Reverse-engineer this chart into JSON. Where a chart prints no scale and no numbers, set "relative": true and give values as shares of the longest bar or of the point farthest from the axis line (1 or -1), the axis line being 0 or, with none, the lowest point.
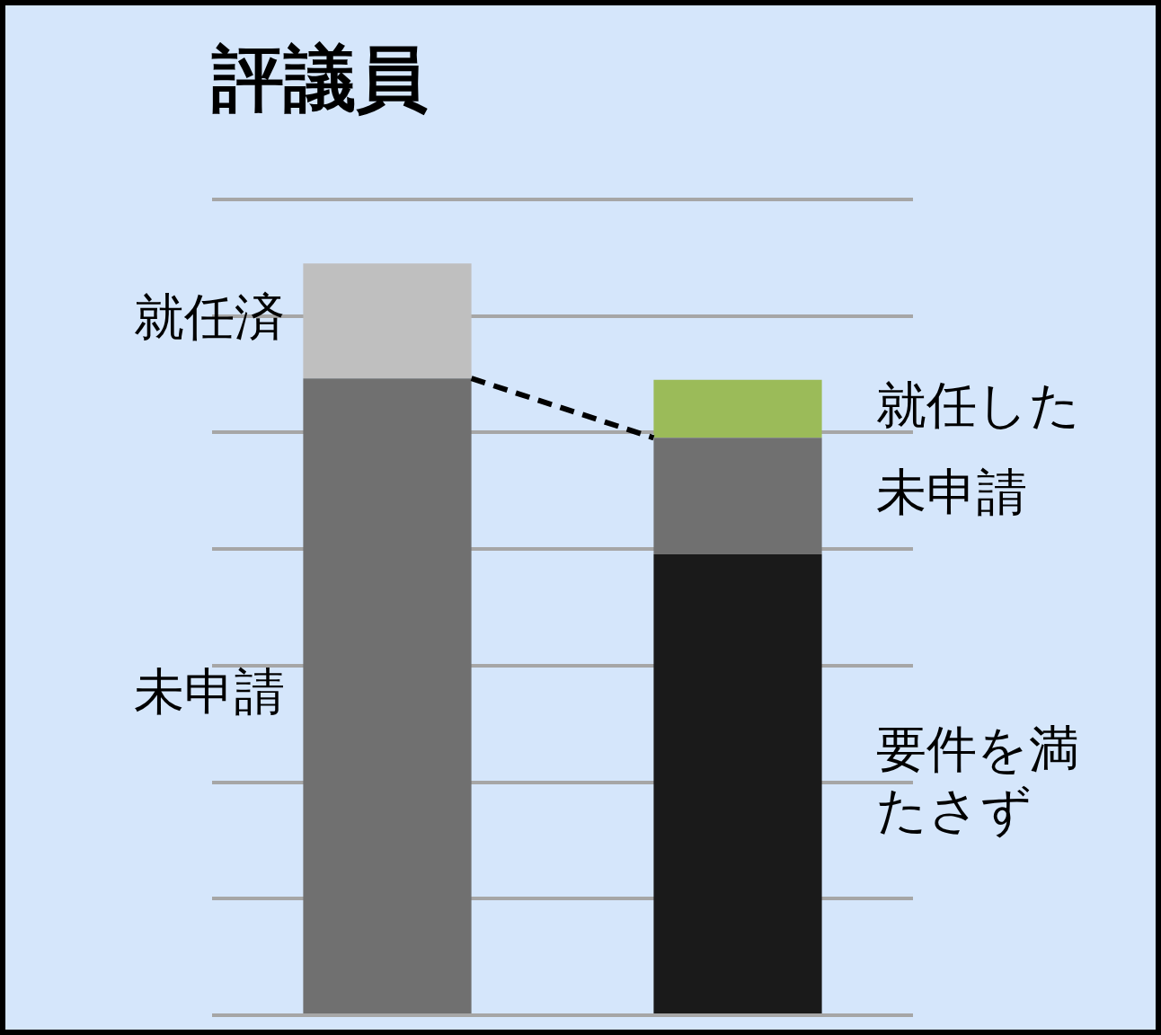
{
  "chart_data": {
    "type": "bar",
    "title": "評議員",
    "categories": [
      null,
      null
    ],
    "stacked": true,
    "relative": true,
    "grid": "y",
    "legend": false,
    "series": [
      {
        "name": "要件を満たさず",
        "color": "#1a1a1a",
        "values": [
          null,
          0.613
        ]
      },
      {
        "name": "未申請",
        "color": "#707070",
        "values": [
          0.847,
          0.155
        ]
      },
      {
        "name": "就任済",
        "color": "#bfbfbf",
        "values": [
          0.153,
          null
        ]
      },
      {
        "name": "就任した",
        "color": "#9bbb59",
        "values": [
          null,
          0.077
        ]
      }
    ]
  }
}
